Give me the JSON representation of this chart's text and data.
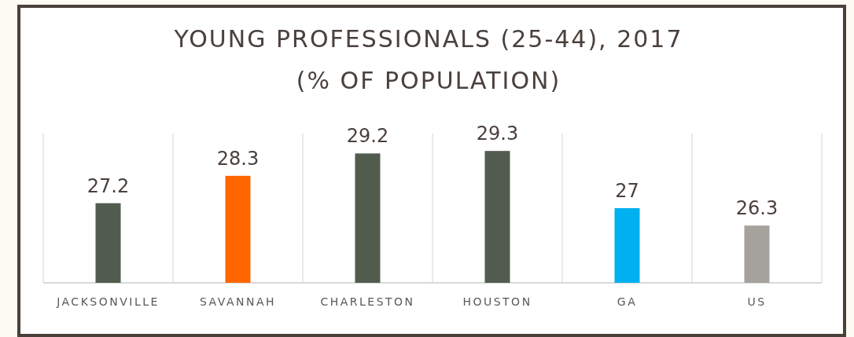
{
  "chart_data": {
    "type": "bar",
    "title": "YOUNG PROFESSIONALS (25-44), 2017",
    "subtitle": "(% OF POPULATION)",
    "categories": [
      "JACKSONVILLE",
      "SAVANNAH",
      "CHARLESTON",
      "HOUSTON",
      "GA",
      "US"
    ],
    "values": [
      27.2,
      28.3,
      29.2,
      29.3,
      27,
      26.3
    ],
    "colors": [
      "#525c4e",
      "#ff6600",
      "#525c4e",
      "#525c4e",
      "#00b0f0",
      "#a5a19c"
    ],
    "ylim": [
      24,
      30
    ],
    "grid": "x",
    "data_labels": true
  }
}
